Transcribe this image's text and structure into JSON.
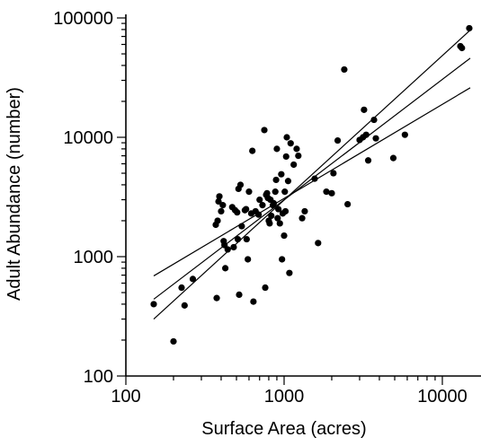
{
  "chart_data": {
    "type": "scatter",
    "title": "",
    "xlabel": "Surface Area (acres)",
    "ylabel": "Adult Abundance (number)",
    "xscale": "log",
    "yscale": "log",
    "xlim": [
      100,
      18000
    ],
    "ylim": [
      100,
      100000
    ],
    "xticks": [
      100,
      1000,
      10000
    ],
    "xtick_labels": [
      "100",
      "1000",
      "10000"
    ],
    "yticks": [
      100,
      1000,
      10000,
      100000
    ],
    "ytick_labels": [
      "100",
      "1000",
      "10000",
      "100000"
    ],
    "grid": false,
    "legend": "none",
    "points": [
      [
        150,
        400
      ],
      [
        200,
        195
      ],
      [
        225,
        550
      ],
      [
        235,
        390
      ],
      [
        265,
        650
      ],
      [
        370,
        1850
      ],
      [
        375,
        450
      ],
      [
        380,
        2000
      ],
      [
        385,
        2900
      ],
      [
        390,
        3200
      ],
      [
        400,
        2400
      ],
      [
        410,
        2700
      ],
      [
        415,
        1350
      ],
      [
        420,
        1250
      ],
      [
        425,
        800
      ],
      [
        440,
        1150
      ],
      [
        470,
        2600
      ],
      [
        480,
        1200
      ],
      [
        490,
        2450
      ],
      [
        505,
        2350
      ],
      [
        510,
        1400
      ],
      [
        515,
        3700
      ],
      [
        520,
        480
      ],
      [
        530,
        4000
      ],
      [
        540,
        1800
      ],
      [
        565,
        2450
      ],
      [
        575,
        2500
      ],
      [
        580,
        1400
      ],
      [
        590,
        950
      ],
      [
        600,
        3500
      ],
      [
        620,
        2300
      ],
      [
        630,
        7700
      ],
      [
        640,
        420
      ],
      [
        660,
        2400
      ],
      [
        690,
        2250
      ],
      [
        700,
        3000
      ],
      [
        730,
        2700
      ],
      [
        750,
        11500
      ],
      [
        760,
        550
      ],
      [
        770,
        3300
      ],
      [
        780,
        3400
      ],
      [
        790,
        3100
      ],
      [
        800,
        2000
      ],
      [
        810,
        1900
      ],
      [
        820,
        3000
      ],
      [
        830,
        2200
      ],
      [
        850,
        2700
      ],
      [
        860,
        2800
      ],
      [
        880,
        3500
      ],
      [
        890,
        4400
      ],
      [
        900,
        8000
      ],
      [
        910,
        2100
      ],
      [
        920,
        2500
      ],
      [
        940,
        1900
      ],
      [
        960,
        4900
      ],
      [
        970,
        950
      ],
      [
        980,
        2300
      ],
      [
        1000,
        1500
      ],
      [
        1010,
        3500
      ],
      [
        1020,
        2400
      ],
      [
        1030,
        6900
      ],
      [
        1040,
        10000
      ],
      [
        1060,
        4300
      ],
      [
        1080,
        730
      ],
      [
        1100,
        8900
      ],
      [
        1150,
        5900
      ],
      [
        1200,
        8000
      ],
      [
        1230,
        7000
      ],
      [
        1300,
        2100
      ],
      [
        1350,
        2400
      ],
      [
        1560,
        4500
      ],
      [
        1640,
        1300
      ],
      [
        1850,
        3500
      ],
      [
        2000,
        3400
      ],
      [
        2050,
        5000
      ],
      [
        2180,
        9400
      ],
      [
        2400,
        37000
      ],
      [
        2520,
        2750
      ],
      [
        3000,
        9500
      ],
      [
        3150,
        10000
      ],
      [
        3200,
        17000
      ],
      [
        3300,
        10500
      ],
      [
        3400,
        6400
      ],
      [
        3700,
        14000
      ],
      [
        3800,
        9800
      ],
      [
        4900,
        6700
      ],
      [
        5800,
        10500
      ],
      [
        13000,
        58000
      ],
      [
        13300,
        56000
      ],
      [
        14800,
        82000
      ]
    ],
    "lines": [
      {
        "x": [
          150,
          15000
        ],
        "y": [
          690,
          26000
        ]
      },
      {
        "x": [
          150,
          15000
        ],
        "y": [
          440,
          46000
        ]
      },
      {
        "x": [
          150,
          15000
        ],
        "y": [
          300,
          79000
        ]
      }
    ]
  }
}
